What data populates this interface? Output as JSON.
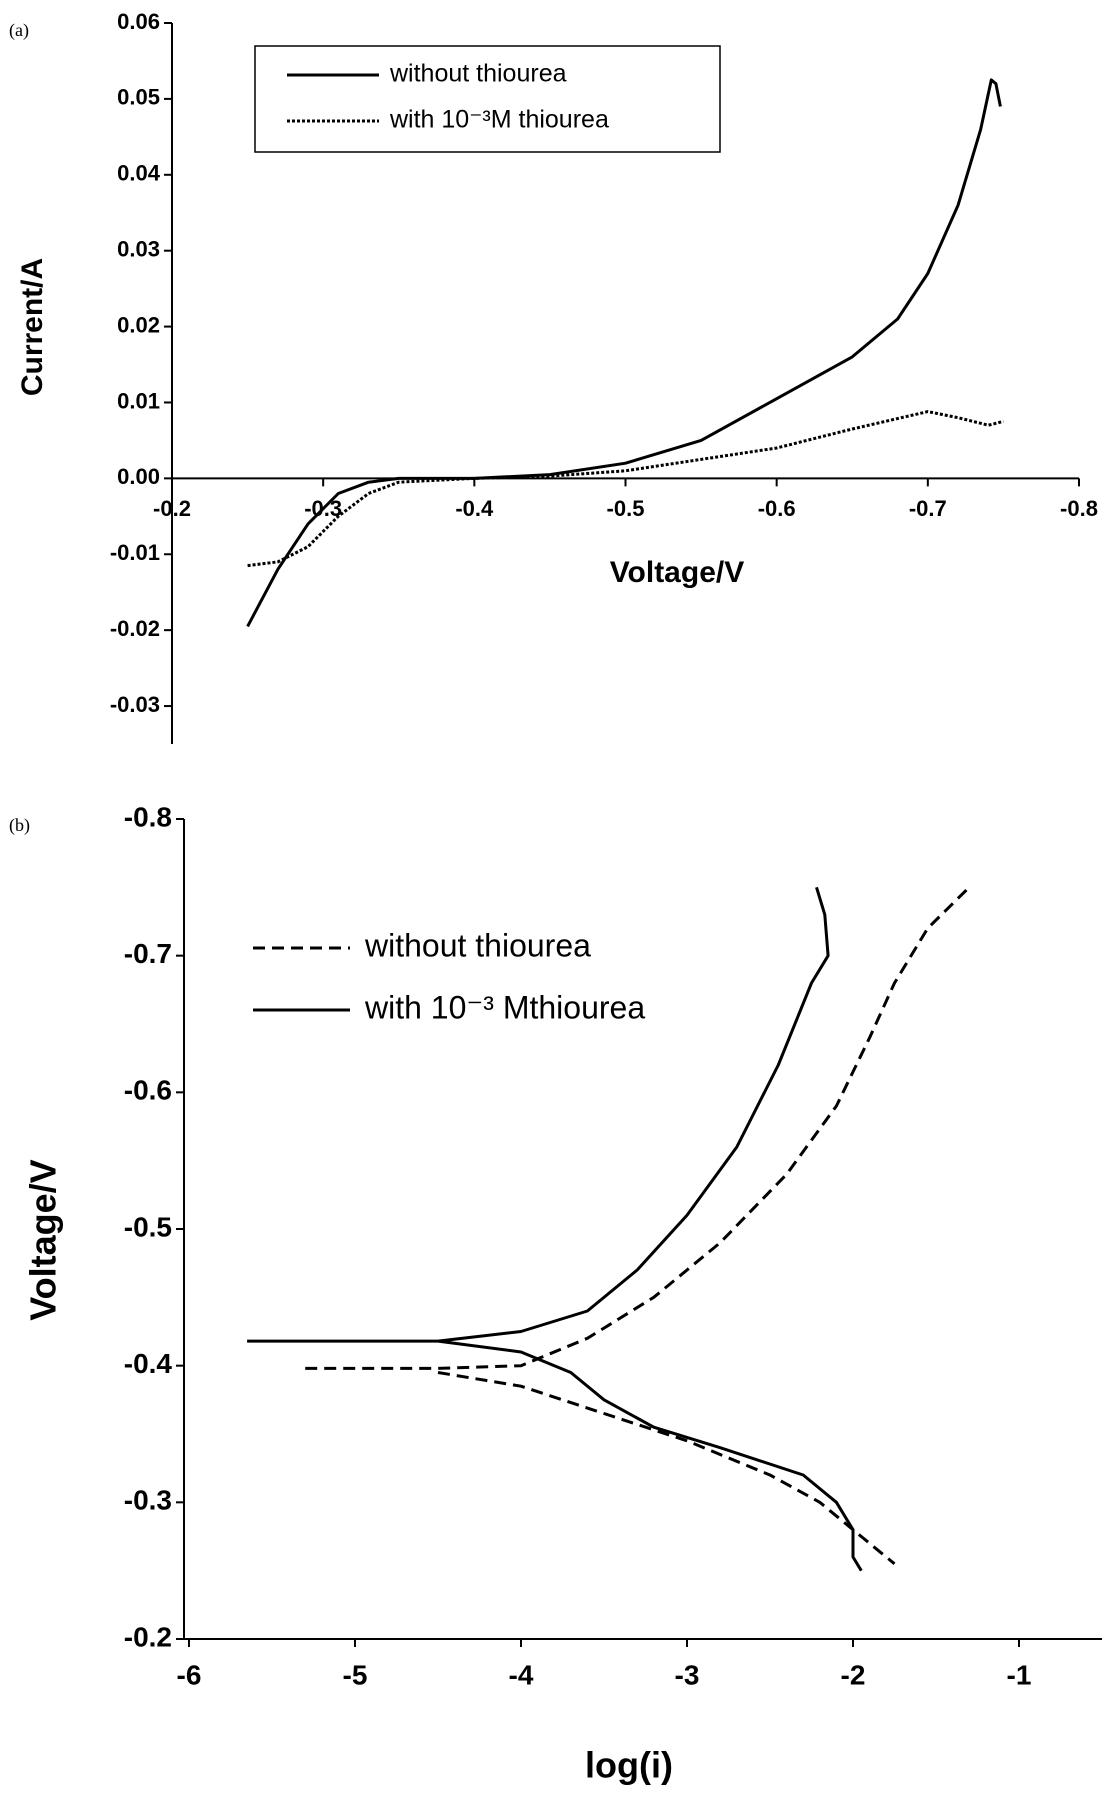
{
  "chart_data": [
    {
      "type": "line",
      "panel": "(a)",
      "x_label": "Voltage/V",
      "y_label": "Current/A",
      "xlim": [
        -0.2,
        -0.8
      ],
      "xticks": [
        -0.2,
        -0.3,
        -0.4,
        -0.5,
        -0.6,
        -0.7,
        -0.8
      ],
      "ylim": [
        -0.035,
        0.06
      ],
      "yticks": [
        -0.03,
        -0.02,
        -0.01,
        {
          "value": 0,
          "label": "0.00"
        },
        0.01,
        0.02,
        0.03,
        0.04,
        0.05,
        0.06
      ],
      "legend": "upper left",
      "legend_box": true,
      "series": [
        {
          "name": "without thiourea",
          "color": "#000000",
          "line_style": "solid",
          "x": [
            -0.25,
            -0.27,
            -0.29,
            -0.31,
            -0.33,
            -0.35,
            -0.4,
            -0.45,
            -0.5,
            -0.55,
            -0.6,
            -0.65,
            -0.68,
            -0.7,
            -0.72,
            -0.735,
            -0.742,
            -0.745,
            -0.748
          ],
          "values": [
            -0.0195,
            -0.012,
            -0.006,
            -0.002,
            -0.0005,
            0.0,
            0.0,
            0.0005,
            0.002,
            0.005,
            0.0105,
            0.016,
            0.021,
            0.027,
            0.036,
            0.046,
            0.0525,
            0.052,
            0.049
          ]
        },
        {
          "name": "with 10⁻³M thiourea",
          "color": "#000000",
          "line_style": "dotted",
          "x": [
            -0.25,
            -0.27,
            -0.29,
            -0.31,
            -0.33,
            -0.35,
            -0.4,
            -0.45,
            -0.5,
            -0.55,
            -0.6,
            -0.65,
            -0.7,
            -0.72,
            -0.74,
            -0.75
          ],
          "values": [
            -0.0115,
            -0.011,
            -0.009,
            -0.005,
            -0.002,
            -0.0005,
            0.0,
            0.0003,
            0.001,
            0.0025,
            0.004,
            0.0065,
            0.0088,
            0.008,
            0.007,
            0.0075
          ]
        }
      ]
    },
    {
      "type": "line",
      "panel": "(b)",
      "x_label": "log(i)",
      "y_label": "Voltage/V",
      "xlim": [
        -6.03,
        -0.5
      ],
      "xticks": [
        -6,
        -5,
        -4,
        -3,
        -2,
        -1
      ],
      "ylim": [
        -0.2,
        -0.8
      ],
      "yticks": [
        -0.2,
        -0.3,
        -0.4,
        -0.5,
        -0.6,
        -0.7,
        -0.8
      ],
      "legend": "upper left",
      "legend_box": false,
      "series": [
        {
          "name": "without thiourea",
          "color": "#000000",
          "line_style": "dashed",
          "x": [
            -5.3,
            -4.5,
            -4.0,
            -3.6,
            -3.2,
            -2.8,
            -2.4,
            -2.1,
            -1.9,
            -1.75,
            -1.55,
            -1.3,
            null,
            -4.5,
            -4.0,
            -3.5,
            -3.0,
            -2.5,
            -2.2,
            -2.0,
            -1.75
          ],
          "values": [
            -0.398,
            -0.398,
            -0.4,
            -0.42,
            -0.45,
            -0.49,
            -0.54,
            -0.59,
            -0.64,
            -0.68,
            -0.72,
            -0.75,
            null,
            -0.395,
            -0.385,
            -0.365,
            -0.345,
            -0.32,
            -0.3,
            -0.28,
            -0.255
          ]
        },
        {
          "name": "with 10⁻³ Mthiourea",
          "color": "#000000",
          "line_style": "solid",
          "x": [
            -5.65,
            -4.5,
            -4.0,
            -3.6,
            -3.3,
            -3.0,
            -2.7,
            -2.45,
            -2.25,
            -2.15,
            -2.17,
            -2.22,
            null,
            -4.5,
            -4.0,
            -3.7,
            -3.5,
            -3.2,
            -2.8,
            -2.3,
            -2.1,
            -2.0,
            -2.0,
            -1.95
          ],
          "values": [
            -0.418,
            -0.418,
            -0.425,
            -0.44,
            -0.47,
            -0.51,
            -0.56,
            -0.62,
            -0.68,
            -0.7,
            -0.73,
            -0.75,
            null,
            -0.418,
            -0.41,
            -0.395,
            -0.375,
            -0.355,
            -0.34,
            -0.32,
            -0.3,
            -0.28,
            -0.26,
            -0.25
          ]
        }
      ]
    }
  ]
}
